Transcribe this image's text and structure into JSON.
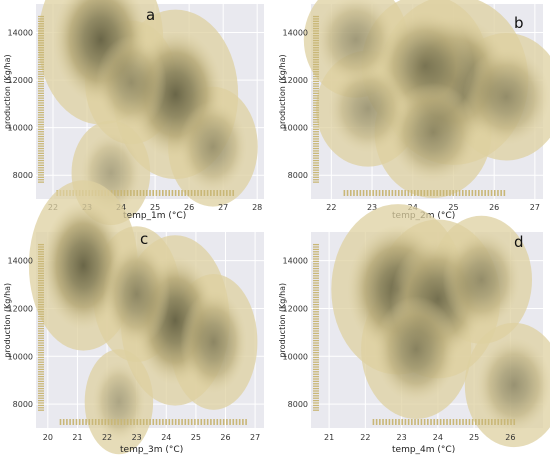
{
  "colors": {
    "background": "#e9e9ef",
    "grid": "#ffffff",
    "rug": "#c9b777",
    "kde_light": "#ddd0a0",
    "kde_dark": "#6a6648",
    "tick_text": "#333333"
  },
  "chart_data": [
    {
      "type": "kde-heatmap",
      "panel_letter": "a",
      "xlabel": "temp_1m",
      "xlabel_unit": "(°C)",
      "ylabel": "production",
      "ylabel_unit": "(Kg/ha)",
      "xlim": [
        21.5,
        28.2
      ],
      "ylim": [
        7000,
        15200
      ],
      "x_ticks": [
        22,
        23,
        24,
        25,
        26,
        27,
        28
      ],
      "y_ticks": [
        8000,
        10000,
        12000,
        14000
      ],
      "grid": true,
      "kde_peaks": [
        {
          "x": 23.4,
          "y": 13700,
          "density": 1.0
        },
        {
          "x": 25.6,
          "y": 11400,
          "density": 1.0
        },
        {
          "x": 24.3,
          "y": 11900,
          "density": 0.4
        },
        {
          "x": 26.7,
          "y": 9200,
          "density": 0.35
        },
        {
          "x": 23.7,
          "y": 8100,
          "density": 0.15
        }
      ],
      "rug_x_range": [
        22.1,
        27.3
      ],
      "rug_y_range": [
        7700,
        14700
      ]
    },
    {
      "type": "kde-heatmap",
      "panel_letter": "b",
      "xlabel": "temp_2m",
      "xlabel_unit": "(°C)",
      "ylabel": "production",
      "ylabel_unit": "(Kg/ha)",
      "xlim": [
        21.5,
        27.2
      ],
      "ylim": [
        7000,
        15200
      ],
      "x_ticks": [
        22,
        23,
        24,
        25,
        26,
        27
      ],
      "y_ticks": [
        8000,
        10000,
        12000,
        14000
      ],
      "grid": true,
      "kde_peaks": [
        {
          "x": 25.0,
          "y": 12000,
          "density": 1.0
        },
        {
          "x": 24.3,
          "y": 12600,
          "density": 0.65
        },
        {
          "x": 24.5,
          "y": 9800,
          "density": 0.5
        },
        {
          "x": 26.3,
          "y": 11300,
          "density": 0.45
        },
        {
          "x": 22.9,
          "y": 10800,
          "density": 0.3
        },
        {
          "x": 22.6,
          "y": 13700,
          "density": 0.3
        }
      ],
      "rug_x_range": [
        22.3,
        26.3
      ],
      "rug_y_range": [
        7700,
        14700
      ]
    },
    {
      "type": "kde-heatmap",
      "panel_letter": "c",
      "xlabel": "temp_3m",
      "xlabel_unit": "(°C)",
      "ylabel": "production",
      "ylabel_unit": "(Kg/ha)",
      "xlim": [
        19.6,
        27.3
      ],
      "ylim": [
        7000,
        15200
      ],
      "x_ticks": [
        20,
        21,
        22,
        23,
        24,
        25,
        26,
        27
      ],
      "y_ticks": [
        8000,
        10000,
        12000,
        14000
      ],
      "grid": true,
      "kde_peaks": [
        {
          "x": 21.2,
          "y": 13800,
          "density": 1.0
        },
        {
          "x": 24.3,
          "y": 11500,
          "density": 1.0
        },
        {
          "x": 25.6,
          "y": 10600,
          "density": 0.55
        },
        {
          "x": 23.0,
          "y": 12600,
          "density": 0.55
        },
        {
          "x": 22.4,
          "y": 8100,
          "density": 0.15
        }
      ],
      "rug_x_range": [
        20.4,
        26.7
      ],
      "rug_y_range": [
        7700,
        14700
      ]
    },
    {
      "type": "kde-heatmap",
      "panel_letter": "d",
      "xlabel": "temp_4m",
      "xlabel_unit": "(°C)",
      "ylabel": "production",
      "ylabel_unit": "(Kg/ha)",
      "xlim": [
        20.5,
        26.9
      ],
      "ylim": [
        7000,
        15200
      ],
      "x_ticks": [
        21,
        22,
        23,
        24,
        25,
        26
      ],
      "y_ticks": [
        8000,
        10000,
        12000,
        14000
      ],
      "grid": true,
      "kde_peaks": [
        {
          "x": 22.9,
          "y": 12800,
          "density": 1.0
        },
        {
          "x": 24.0,
          "y": 12400,
          "density": 0.85
        },
        {
          "x": 23.4,
          "y": 10300,
          "density": 0.6
        },
        {
          "x": 25.2,
          "y": 13200,
          "density": 0.45
        },
        {
          "x": 26.1,
          "y": 8800,
          "density": 0.4
        }
      ],
      "rug_x_range": [
        22.2,
        26.1
      ],
      "rug_y_range": [
        7700,
        14700
      ]
    }
  ]
}
